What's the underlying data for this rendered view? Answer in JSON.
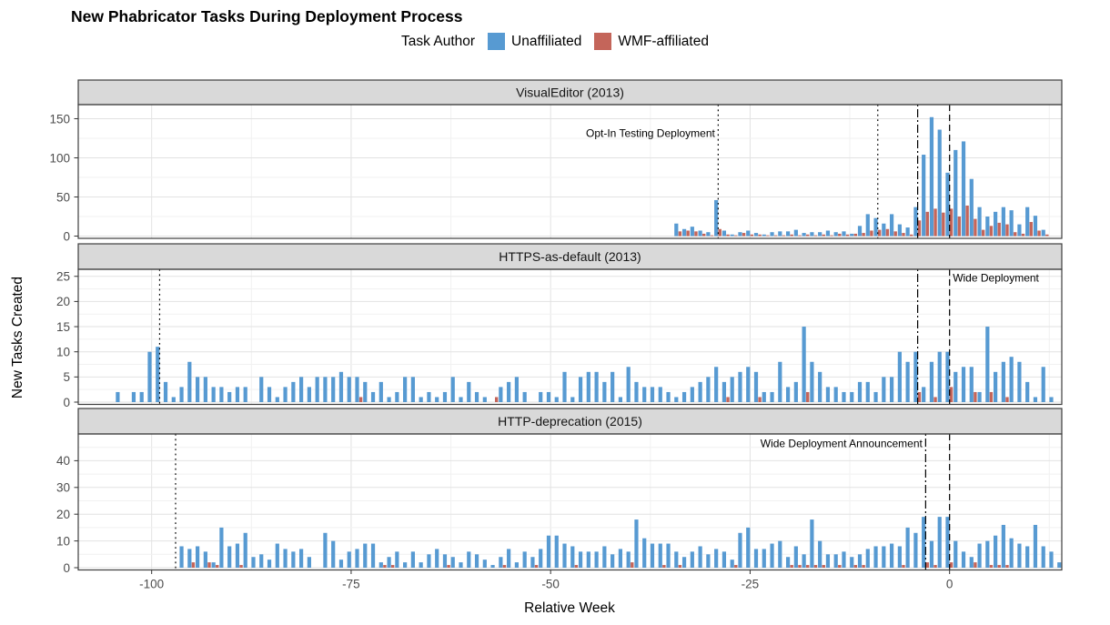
{
  "title": "New Phabricator Tasks During Deployment Process",
  "legend": {
    "title": "Task Author",
    "items": [
      {
        "label": "Unaffiliated",
        "color": "#579ad2"
      },
      {
        "label": "WMF-affiliated",
        "color": "#c4655a"
      }
    ]
  },
  "axes": {
    "x_label": "Relative Week",
    "y_label": "New Tasks Created",
    "x_ticks": [
      -100,
      -75,
      -50,
      -25,
      0
    ],
    "x_range": [
      -104,
      14
    ]
  },
  "colors": {
    "unaffiliated": "#579ad2",
    "wmf": "#c4655a",
    "strip_bg": "#d9d9d9",
    "panel_border": "#3c3c3c",
    "grid_major": "#e2e2e2",
    "grid_minor": "#f1f1f1",
    "axis_text": "#4d4d4d",
    "event_line": "#000000"
  },
  "chart_data": [
    {
      "type": "bar",
      "facet": "VisualEditor (2013)",
      "y_ticks": [
        0,
        50,
        100,
        150
      ],
      "y_minor_step": 25,
      "y_max": 168,
      "weeks_start": -34,
      "series": [
        {
          "name": "Unaffiliated",
          "values": [
            16,
            9,
            12,
            7,
            5,
            46,
            7,
            2,
            5,
            7,
            4,
            2,
            5,
            6,
            6,
            8,
            4,
            5,
            5,
            7,
            5,
            6,
            3,
            13,
            28,
            23,
            16,
            28,
            15,
            11,
            37,
            104,
            152,
            136,
            81,
            110,
            121,
            73,
            37,
            25,
            31,
            37,
            33,
            15,
            37,
            26,
            8
          ]
        },
        {
          "name": "WMF-affiliated",
          "values": [
            6,
            7,
            6,
            3,
            1,
            9,
            2,
            1,
            4,
            2,
            2,
            1,
            1,
            1,
            2,
            1,
            2,
            1,
            2,
            1,
            3,
            2,
            3,
            4,
            7,
            8,
            9,
            6,
            4,
            2,
            20,
            31,
            35,
            30,
            35,
            25,
            39,
            22,
            8,
            13,
            17,
            15,
            5,
            3,
            18,
            7,
            2
          ]
        }
      ],
      "events": [
        {
          "x": -29,
          "style": "dotted"
        },
        {
          "x": -9,
          "style": "dotted"
        },
        {
          "x": -4,
          "style": "dotdash"
        },
        {
          "x": 0,
          "style": "dashed"
        }
      ],
      "annotation": {
        "text": "Opt-In Testing Deployment",
        "x": -29.4,
        "y": 127,
        "anchor": "end"
      }
    },
    {
      "type": "bar",
      "facet": "HTTPS-as-default (2013)",
      "y_ticks": [
        0,
        5,
        10,
        15,
        20,
        25
      ],
      "y_minor_step": 2.5,
      "y_max": 26.4,
      "weeks_start": -104,
      "series": [
        {
          "name": "Unaffiliated",
          "values": [
            2,
            0,
            2,
            2,
            10,
            11,
            4,
            1,
            3,
            8,
            5,
            5,
            3,
            3,
            2,
            3,
            3,
            0,
            5,
            3,
            1,
            3,
            4,
            5,
            3,
            5,
            5,
            5,
            6,
            5,
            5,
            4,
            2,
            4,
            1,
            2,
            5,
            5,
            1,
            2,
            1,
            2,
            5,
            1,
            4,
            2,
            1,
            0,
            3,
            4,
            5,
            2,
            0,
            2,
            2,
            1,
            6,
            1,
            5,
            6,
            6,
            4,
            6,
            1,
            7,
            4,
            3,
            3,
            3,
            2,
            1,
            2,
            3,
            4,
            5,
            7,
            4,
            5,
            6,
            7,
            6,
            2,
            2,
            8,
            3,
            4,
            15,
            8,
            6,
            3,
            3,
            2,
            2,
            4,
            4,
            2,
            5,
            5,
            10,
            8,
            10,
            3,
            8,
            10,
            10,
            6,
            7,
            7,
            2,
            15,
            6,
            8,
            9,
            8,
            4,
            1,
            7,
            1
          ]
        },
        {
          "name": "WMF-affiliated",
          "values": [
            0,
            0,
            0,
            0,
            0,
            0,
            0,
            0,
            0,
            0,
            0,
            0,
            0,
            0,
            0,
            0,
            0,
            0,
            0,
            0,
            0,
            0,
            0,
            0,
            0,
            0,
            0,
            0,
            0,
            0,
            1,
            0,
            0,
            0,
            0,
            0,
            0,
            0,
            0,
            0,
            0,
            0,
            0,
            0,
            0,
            0,
            0,
            1,
            0,
            0,
            0,
            0,
            0,
            0,
            0,
            0,
            0,
            0,
            0,
            0,
            0,
            0,
            0,
            0,
            0,
            0,
            0,
            0,
            0,
            0,
            0,
            0,
            0,
            0,
            0,
            0,
            1,
            0,
            0,
            0,
            1,
            0,
            0,
            0,
            0,
            0,
            2,
            0,
            0,
            0,
            0,
            0,
            0,
            0,
            0,
            0,
            0,
            0,
            0,
            0,
            2,
            0,
            1,
            0,
            3,
            0,
            0,
            2,
            0,
            2,
            0,
            1,
            0,
            0,
            0,
            0,
            0,
            0
          ]
        }
      ],
      "events": [
        {
          "x": -99,
          "style": "dotted"
        },
        {
          "x": -4,
          "style": "dotdash"
        },
        {
          "x": 0,
          "style": "dashed"
        }
      ],
      "annotation": {
        "text": "Wide Deployment",
        "x": 0.4,
        "y": 24,
        "anchor": "start"
      }
    },
    {
      "type": "bar",
      "facet": "HTTP-deprecation (2015)",
      "y_ticks": [
        0,
        10,
        20,
        30,
        40
      ],
      "y_minor_step": 5,
      "y_max": 50,
      "weeks_start": -96,
      "series": [
        {
          "name": "Unaffiliated",
          "values": [
            8,
            7,
            8,
            6,
            2,
            15,
            8,
            9,
            13,
            4,
            5,
            3,
            9,
            7,
            6,
            7,
            4,
            0,
            13,
            10,
            3,
            6,
            7,
            9,
            9,
            2,
            4,
            6,
            2,
            6,
            2,
            5,
            7,
            5,
            4,
            2,
            6,
            5,
            3,
            1,
            4,
            7,
            2,
            6,
            4,
            7,
            12,
            12,
            9,
            8,
            6,
            6,
            6,
            8,
            5,
            7,
            6,
            18,
            11,
            9,
            9,
            9,
            6,
            4,
            6,
            8,
            5,
            7,
            6,
            3,
            13,
            15,
            7,
            7,
            9,
            10,
            4,
            8,
            5,
            18,
            10,
            5,
            5,
            6,
            4,
            5,
            7,
            8,
            8,
            9,
            8,
            15,
            13,
            19,
            10,
            19,
            19,
            10,
            6,
            4,
            9,
            10,
            12,
            16,
            11,
            9,
            8,
            16,
            8,
            6,
            2
          ]
        },
        {
          "name": "WMF-affiliated",
          "values": [
            0,
            2,
            0,
            2,
            1,
            0,
            0,
            1,
            0,
            0,
            0,
            0,
            0,
            0,
            0,
            0,
            0,
            0,
            0,
            0,
            0,
            0,
            0,
            0,
            0,
            1,
            1,
            0,
            0,
            0,
            0,
            0,
            0,
            1,
            0,
            0,
            0,
            0,
            0,
            0,
            1,
            0,
            0,
            0,
            1,
            0,
            0,
            0,
            0,
            1,
            0,
            0,
            0,
            0,
            0,
            0,
            2,
            0,
            0,
            0,
            1,
            0,
            1,
            0,
            0,
            0,
            0,
            0,
            0,
            1,
            0,
            0,
            0,
            0,
            0,
            0,
            1,
            1,
            1,
            1,
            1,
            0,
            1,
            0,
            1,
            1,
            0,
            0,
            0,
            0,
            1,
            0,
            0,
            2,
            1,
            0,
            2,
            0,
            0,
            2,
            0,
            1,
            1,
            1,
            0,
            0,
            0,
            0,
            0,
            0,
            0
          ]
        }
      ],
      "events": [
        {
          "x": -97,
          "style": "dotted"
        },
        {
          "x": -3,
          "style": "dotdash"
        },
        {
          "x": 0,
          "style": "dashed"
        }
      ],
      "annotation": {
        "text": "Wide Deployment Announcement",
        "x": -3.4,
        "y": 45,
        "anchor": "end"
      }
    }
  ]
}
